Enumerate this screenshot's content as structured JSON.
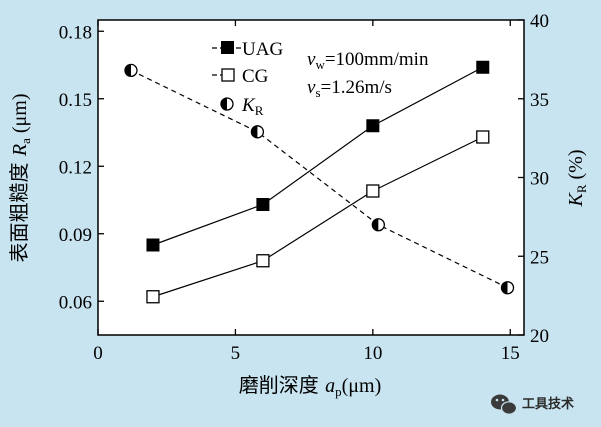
{
  "chart_data": {
    "type": "line",
    "x": {
      "label_cn": "磨削深度 ",
      "label_sym": "a",
      "label_sub": "p",
      "label_unit": "(μm)",
      "range": [
        0,
        15.5
      ],
      "ticks": [
        0,
        5,
        10,
        15
      ],
      "tick_labels": [
        "0",
        "5",
        "10",
        "15"
      ]
    },
    "y_left": {
      "label_cn": "表面粗糙度 ",
      "label_sym": "R",
      "label_sub": "a",
      "label_unit": " (μm)",
      "range": [
        0.045,
        0.185
      ],
      "ticks": [
        0.06,
        0.09,
        0.12,
        0.15,
        0.18
      ],
      "tick_labels": [
        "0.06",
        "0.09",
        "0.12",
        "0.15",
        "0.18"
      ]
    },
    "y_right": {
      "label_sym": "K",
      "label_sub": "R",
      "label_unit": " (%)",
      "range": [
        20,
        40
      ],
      "ticks": [
        20,
        25,
        30,
        35,
        40
      ],
      "tick_labels": [
        "20",
        "25",
        "30",
        "35",
        "40"
      ]
    },
    "series": [
      {
        "name": "UAG",
        "axis": "left",
        "marker": "filled-square",
        "line": "solid",
        "x": [
          2,
          6,
          10,
          14
        ],
        "y": [
          0.085,
          0.103,
          0.138,
          0.164
        ]
      },
      {
        "name": "CG",
        "axis": "left",
        "marker": "open-square",
        "line": "solid",
        "x": [
          2,
          6,
          10,
          14
        ],
        "y": [
          0.062,
          0.078,
          0.109,
          0.133
        ]
      },
      {
        "name_sym": "K",
        "name_sub": "R",
        "axis": "right",
        "marker": "half-filled-circle",
        "line": "dashed",
        "x": [
          1.2,
          5.8,
          10.2,
          14.9
        ],
        "y": [
          36.8,
          32.9,
          27.0,
          23.0
        ]
      }
    ],
    "annotations": {
      "vw_sym": "v",
      "vw_sub": "w",
      "vw_text": "=100mm/min",
      "vs_sym": "v",
      "vs_sub": "s",
      "vs_text": "=1.26m/s"
    },
    "grid": false,
    "legend_position": "top-left"
  },
  "watermark": {
    "text": "工具技术",
    "icon": "wechat-icon"
  },
  "colors": {
    "background": "#c9e4f1",
    "plot_background": "#ffffff",
    "ink": "#000000"
  }
}
